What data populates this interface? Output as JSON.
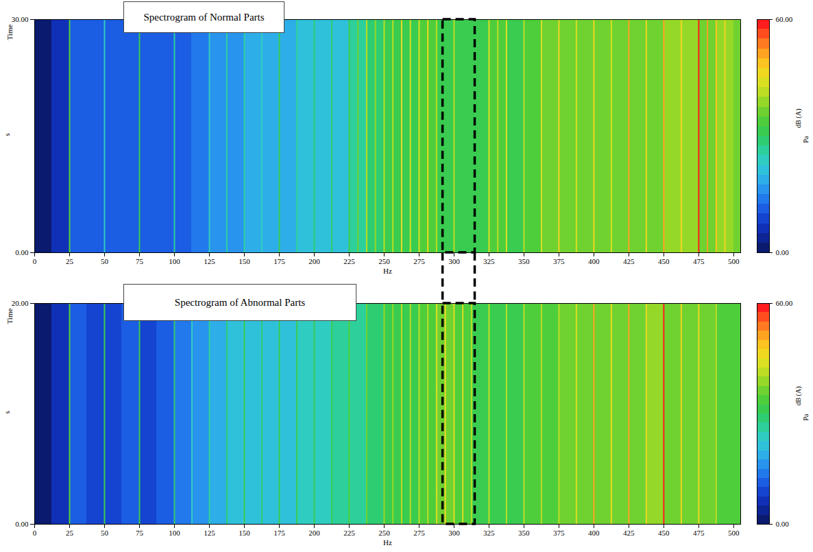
{
  "chart_data": [
    {
      "type": "heatmap",
      "title": "Spectrogram of Normal Parts",
      "x_label": "Hz",
      "y_label": "Time",
      "y_unit": "s",
      "xlim": [
        0,
        505
      ],
      "xticks": [
        0,
        25,
        50,
        75,
        100,
        125,
        150,
        175,
        200,
        225,
        250,
        275,
        300,
        325,
        350,
        375,
        400,
        425,
        450,
        475,
        500
      ],
      "ylim": [
        0,
        30
      ],
      "yticks": [
        {
          "value": 0,
          "label": "0.00"
        },
        {
          "value": 30,
          "label": "30.00"
        }
      ],
      "band_edges": [
        0,
        12.5,
        25,
        37.5,
        50,
        62.5,
        75,
        87.5,
        100,
        112.5,
        125,
        137.5,
        150,
        162.5,
        175,
        187.5,
        200,
        212.5,
        225,
        237.5,
        250,
        262.5,
        275,
        287.5,
        300,
        312.5,
        325,
        337.5,
        350,
        362.5,
        375,
        387.5,
        400,
        412.5,
        425,
        437.5,
        450,
        462.5,
        475,
        487.5,
        500,
        505
      ],
      "band_levels": [
        1,
        5,
        10,
        10,
        12,
        12,
        10,
        11,
        12,
        14,
        16,
        17,
        18,
        18,
        19,
        20,
        21,
        22,
        27,
        29,
        31,
        32,
        33,
        30,
        30,
        32,
        33,
        31,
        34,
        36,
        37,
        37,
        37,
        37,
        36,
        37,
        38,
        38,
        37,
        38,
        37
      ],
      "line_frequencies": [
        25,
        50,
        75,
        100,
        125,
        137.5,
        150,
        162.5,
        175,
        187.5,
        200,
        212.5,
        225,
        231.25,
        237.5,
        243.75,
        250,
        256.25,
        262.5,
        268.75,
        275,
        281.25,
        287.5,
        300,
        325,
        331.25,
        337.5,
        350,
        362.5,
        375,
        387.5,
        400,
        412.5,
        425,
        437.5,
        450,
        462.5,
        475,
        481.25,
        487.5,
        493.75
      ],
      "line_levels": [
        34,
        24,
        32,
        26,
        24,
        26,
        25,
        24,
        32,
        26,
        28,
        28,
        30,
        36,
        40,
        38,
        42,
        40,
        46,
        44,
        44,
        46,
        42,
        40,
        44,
        42,
        44,
        42,
        44,
        46,
        44,
        46,
        44,
        52,
        46,
        50,
        46,
        58,
        50,
        48,
        46
      ],
      "highlight": [
        292,
        315
      ],
      "colorbar": {
        "range": [
          0,
          60
        ],
        "ticks": [
          {
            "value": 0,
            "label": "0.00"
          },
          {
            "value": 60,
            "label": "60.00"
          }
        ],
        "label": "dB (A)",
        "unit": "Pa"
      }
    },
    {
      "type": "heatmap",
      "title": "Spectrogram of Abnormal Parts",
      "x_label": "Hz",
      "y_label": "Time",
      "y_unit": "s",
      "xlim": [
        0,
        505
      ],
      "xticks": [
        0,
        25,
        50,
        75,
        100,
        125,
        150,
        175,
        200,
        225,
        250,
        275,
        300,
        325,
        350,
        375,
        400,
        425,
        450,
        475,
        500
      ],
      "ylim": [
        0,
        20
      ],
      "yticks": [
        {
          "value": 0,
          "label": "0.00"
        },
        {
          "value": 20,
          "label": "20.00"
        }
      ],
      "band_edges": [
        0,
        12.5,
        25,
        37.5,
        50,
        62.5,
        75,
        87.5,
        100,
        112.5,
        125,
        137.5,
        150,
        162.5,
        175,
        187.5,
        200,
        212.5,
        225,
        237.5,
        250,
        262.5,
        275,
        287.5,
        300,
        312.5,
        325,
        337.5,
        350,
        362.5,
        375,
        387.5,
        400,
        412.5,
        425,
        437.5,
        450,
        462.5,
        475,
        487.5,
        500,
        505
      ],
      "band_levels": [
        1,
        5,
        10,
        9,
        8,
        10,
        9,
        11,
        13,
        15,
        18,
        20,
        20,
        21,
        22,
        23,
        24,
        25,
        27,
        28,
        30,
        31,
        33,
        35,
        33,
        32,
        31,
        31,
        33,
        34,
        35,
        37,
        37,
        37,
        37,
        38,
        37,
        36,
        35,
        34,
        33
      ],
      "line_frequencies": [
        25,
        50,
        75,
        100,
        112.5,
        125,
        137.5,
        150,
        162.5,
        175,
        187.5,
        200,
        212.5,
        225,
        237.5,
        250,
        256.25,
        262.5,
        268.75,
        275,
        281.25,
        287.5,
        293.75,
        300,
        306.25,
        312.5,
        325,
        337.5,
        350,
        362.5,
        375,
        387.5,
        400,
        412.5,
        425,
        437.5,
        450,
        462.5,
        475,
        487.5
      ],
      "line_levels": [
        34,
        30,
        32,
        28,
        24,
        26,
        28,
        30,
        28,
        32,
        30,
        32,
        30,
        34,
        36,
        38,
        38,
        40,
        42,
        40,
        42,
        44,
        46,
        44,
        44,
        42,
        40,
        40,
        40,
        42,
        42,
        44,
        52,
        46,
        52,
        46,
        58,
        46,
        46,
        42
      ],
      "highlight": [
        292,
        315
      ],
      "colorbar": {
        "range": [
          0,
          60
        ],
        "ticks": [
          {
            "value": 0,
            "label": "0.00"
          },
          {
            "value": 60,
            "label": "60.00"
          }
        ],
        "label": "dB (A)",
        "unit": "Pa"
      }
    }
  ]
}
